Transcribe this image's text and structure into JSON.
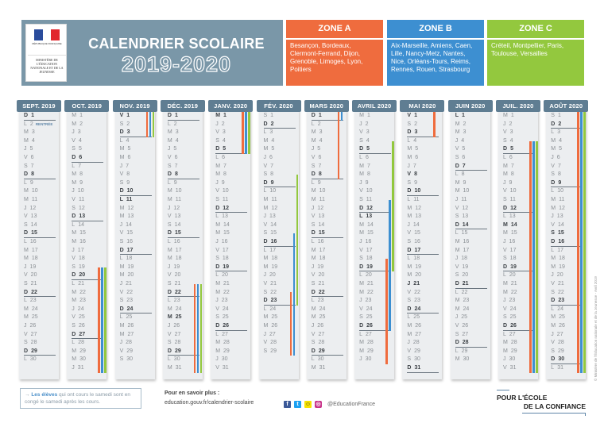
{
  "header": {
    "logo_line1": "RÉPUBLIQUE FRANÇAISE",
    "logo_ministry": "MINISTÈRE DE L'ÉDUCATION NATIONALE ET DE LA JEUNESSE",
    "title": "CALENDRIER SCOLAIRE",
    "year": "2019-2020"
  },
  "zones": [
    {
      "label": "ZONE A",
      "cities": "Besançon, Bordeaux, Clermont-Ferrand, Dijon, Grenoble, Limoges, Lyon, Poitiers",
      "color": "#ef6c3e"
    },
    {
      "label": "ZONE B",
      "cities": "Aix-Marseille, Amiens, Caen, Lille, Nancy-Metz, Nantes, Nice, Orléans-Tours, Reims, Rennes, Rouen, Strasbourg",
      "color": "#3d8fd1"
    },
    {
      "label": "ZONE C",
      "cities": "Créteil, Montpellier, Paris, Toulouse, Versailles",
      "color": "#93c83e"
    }
  ],
  "weekday_letters": [
    "L",
    "M",
    "M",
    "J",
    "V",
    "S",
    "D"
  ],
  "rentree_label": "RENTRÉE",
  "months": [
    {
      "label": "SEPT. 2019",
      "start_weekday": 6,
      "days": 30,
      "holidays": [],
      "rentree_day": 2,
      "vacations": {}
    },
    {
      "label": "OCT. 2019",
      "start_weekday": 1,
      "days": 31,
      "holidays": [],
      "vacations": {
        "A": [
          19,
          31
        ],
        "B": [
          19,
          31
        ],
        "C": [
          19,
          31
        ]
      }
    },
    {
      "label": "NOV. 2019",
      "start_weekday": 4,
      "days": 30,
      "holidays": [
        1,
        11
      ],
      "vacations": {
        "A": [
          1,
          3
        ],
        "B": [
          1,
          3
        ],
        "C": [
          1,
          3
        ]
      }
    },
    {
      "label": "DÉC. 2019",
      "start_weekday": 6,
      "days": 31,
      "holidays": [
        25
      ],
      "vacations": {
        "A": [
          21,
          31
        ],
        "B": [
          21,
          31
        ],
        "C": [
          21,
          31
        ]
      }
    },
    {
      "label": "JANV. 2020",
      "start_weekday": 2,
      "days": 31,
      "holidays": [
        1
      ],
      "vacations": {
        "A": [
          1,
          5
        ],
        "B": [
          1,
          5
        ],
        "C": [
          1,
          5
        ]
      }
    },
    {
      "label": "FÉV. 2020",
      "start_weekday": 5,
      "days": 29,
      "holidays": [],
      "vacations": {
        "A": [
          22,
          29
        ],
        "B": [
          15,
          29
        ],
        "C": [
          8,
          23
        ]
      }
    },
    {
      "label": "MARS 2020",
      "start_weekday": 6,
      "days": 31,
      "holidays": [],
      "vacations": {
        "A": [
          1,
          8
        ],
        "B": [
          1,
          1
        ]
      }
    },
    {
      "label": "AVRIL 2020",
      "start_weekday": 2,
      "days": 30,
      "holidays": [
        13
      ],
      "vacations": {
        "A": [
          18,
          30
        ],
        "B": [
          11,
          26
        ],
        "C": [
          4,
          19
        ]
      }
    },
    {
      "label": "MAI 2020",
      "start_weekday": 4,
      "days": 31,
      "holidays": [
        1,
        8,
        21
      ],
      "vacations": {
        "A": [
          1,
          3
        ]
      }
    },
    {
      "label": "JUIN 2020",
      "start_weekday": 0,
      "days": 30,
      "holidays": [
        1
      ],
      "vacations": {}
    },
    {
      "label": "JUIL. 2020",
      "start_weekday": 2,
      "days": 31,
      "holidays": [
        14
      ],
      "vacations": {
        "A": [
          4,
          31
        ],
        "B": [
          4,
          31
        ],
        "C": [
          4,
          31
        ]
      }
    },
    {
      "label": "AOÛT 2020",
      "start_weekday": 5,
      "days": 31,
      "holidays": [
        15
      ],
      "vacations": {
        "A": [
          1,
          31
        ],
        "B": [
          1,
          31
        ],
        "C": [
          1,
          31
        ]
      }
    }
  ],
  "footer": {
    "note_strong": "Les élèves",
    "note_rest": " qui ont cours le samedi sont en congé le samedi après les cours.",
    "more_title": "Pour en savoir plus :",
    "more_url": "education.gouv.fr/calendrier-scolaire",
    "social_handle": "@EducationFrance",
    "brand_line1": "POUR L'ÉCOLE",
    "brand_line2": "DE LA CONFIANCE",
    "credit": "© Ministère de l'Éducation nationale et de la Jeunesse - Avril 2019"
  }
}
